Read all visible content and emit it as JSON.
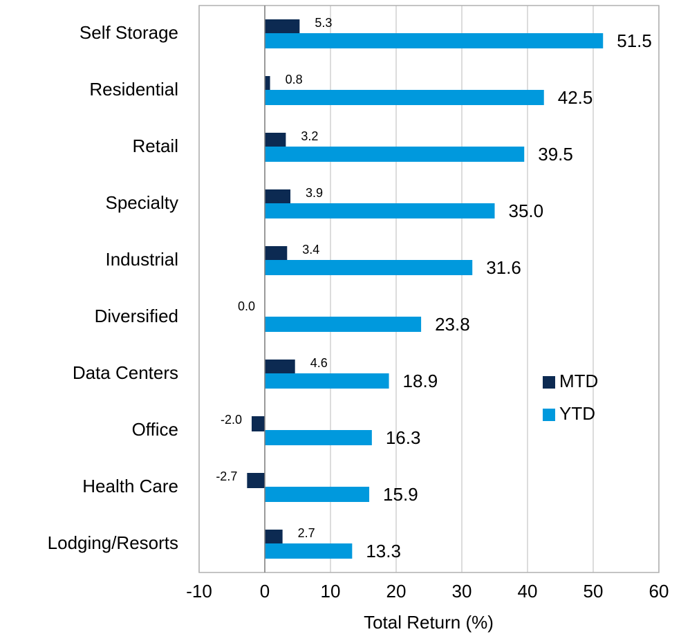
{
  "chart_data": {
    "type": "bar",
    "orientation": "horizontal",
    "x_label": "Total Return (%)",
    "categories": [
      "Self Storage",
      "Residential",
      "Retail",
      "Specialty",
      "Industrial",
      "Diversified",
      "Data Centers",
      "Office",
      "Health Care",
      "Lodging/Resorts"
    ],
    "series": [
      {
        "name": "MTD",
        "color": "#0c2a52",
        "values": [
          5.3,
          0.8,
          3.2,
          3.9,
          3.4,
          0,
          4.6,
          -2,
          -2.7,
          2.7
        ],
        "value_labels": [
          "5.3",
          "0.8",
          "3.2",
          "3.9",
          "3.4",
          "0.0",
          "4.6",
          "-2.0",
          "-2.7",
          "2.7"
        ]
      },
      {
        "name": "YTD",
        "color": "#0099dd",
        "values": [
          51.5,
          42.5,
          39.5,
          35,
          31.6,
          23.8,
          18.9,
          16.3,
          15.9,
          13.3
        ],
        "value_labels": [
          "51.5",
          "42.5",
          "39.5",
          "35.0",
          "31.6",
          "23.8",
          "18.9",
          "16.3",
          "15.9",
          "13.3"
        ]
      }
    ],
    "xlim": [
      -10,
      60
    ],
    "xticks": [
      -10,
      0,
      10,
      20,
      30,
      40,
      50,
      60
    ],
    "grid": true,
    "legend": "right"
  }
}
